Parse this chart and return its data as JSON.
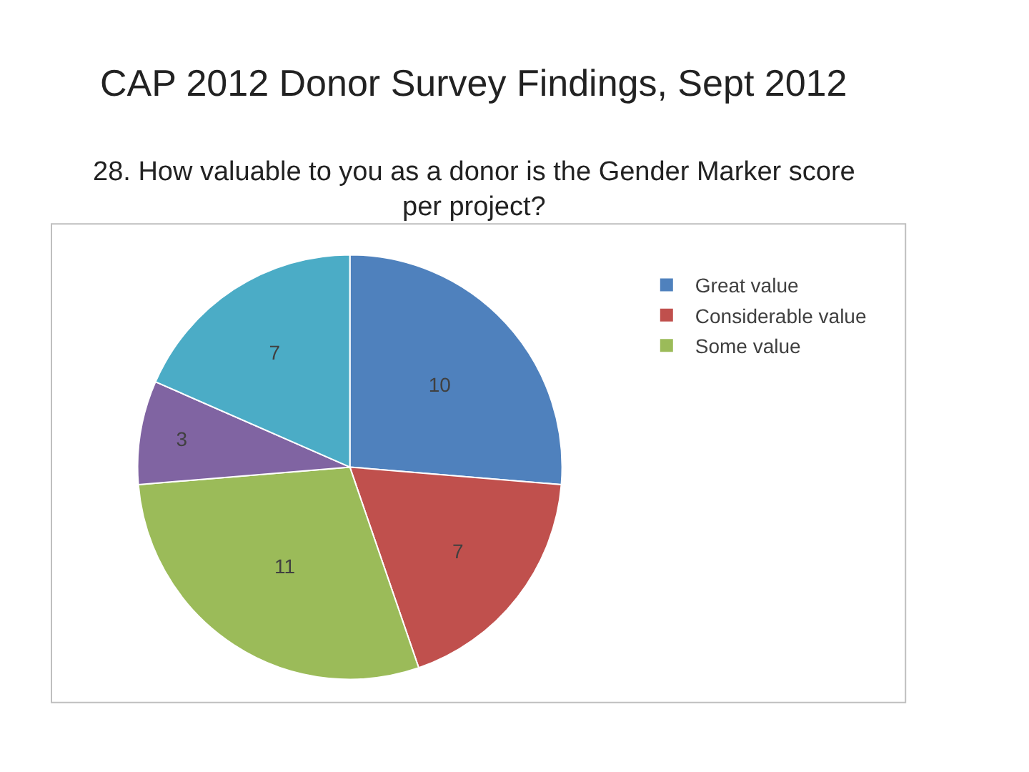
{
  "chart_data": {
    "type": "pie",
    "title": "CAP 2012 Donor Survey Findings, Sept 2012",
    "subtitle": "28. How valuable to you as a donor is the Gender Marker score per project?",
    "categories": [
      "Great value",
      "Considerable value",
      "Some value",
      null,
      null
    ],
    "values": [
      10,
      7,
      11,
      3,
      7
    ],
    "colors": [
      "#4f81bd",
      "#c0504d",
      "#9bbb59",
      "#8064a2",
      "#4bacc6"
    ],
    "data_labels": true,
    "legend": "right"
  }
}
